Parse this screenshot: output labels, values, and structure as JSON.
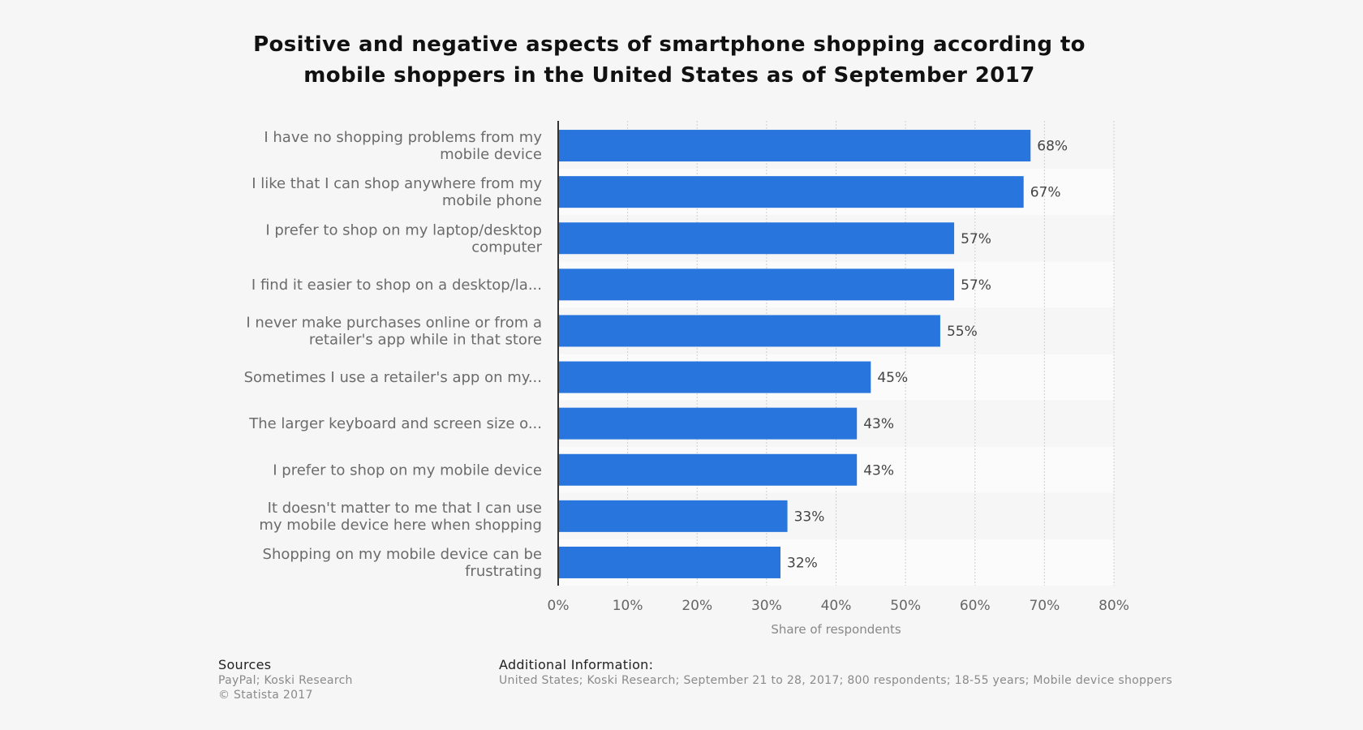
{
  "title": "Positive and negative aspects of smartphone shopping according to\nmobile shoppers in the United States as of September 2017",
  "chart_data": {
    "type": "bar",
    "orientation": "horizontal",
    "categories": [
      [
        "I have no shopping problems from my",
        "mobile device"
      ],
      [
        "I like that I can shop anywhere from my",
        "mobile phone"
      ],
      [
        "I prefer to shop on my laptop/desktop",
        "computer"
      ],
      [
        "I find it easier to shop on a desktop/la..."
      ],
      [
        "I never make purchases online or from a",
        "retailer's app while in that store"
      ],
      [
        "Sometimes I use a retailer's app on my..."
      ],
      [
        "The larger keyboard and screen size o..."
      ],
      [
        "I prefer to shop on my mobile device"
      ],
      [
        "It doesn't matter to me that I can use",
        "my mobile device here when shopping"
      ],
      [
        "Shopping on my mobile device can be",
        "frustrating"
      ]
    ],
    "values": [
      68,
      67,
      57,
      57,
      55,
      45,
      43,
      43,
      33,
      32
    ],
    "value_suffix": "%",
    "xlim": [
      0,
      80
    ],
    "xticks": [
      "0%",
      "10%",
      "20%",
      "30%",
      "40%",
      "50%",
      "60%",
      "70%",
      "80%"
    ],
    "xlabel": "Share of respondents",
    "grid": true,
    "bar_color": "#2876dd"
  },
  "footer": {
    "sources_heading": "Sources",
    "sources_lines": [
      "PayPal; Koski Research",
      "© Statista 2017"
    ],
    "additional_heading": "Additional Information:",
    "additional_text": "United States; Koski Research; September 21 to 28, 2017; 800 respondents; 18-55 years; Mobile device shoppers"
  }
}
